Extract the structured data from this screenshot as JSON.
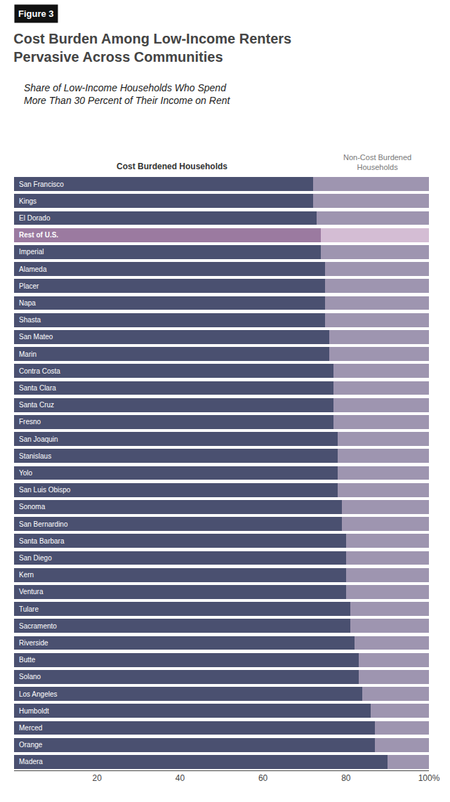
{
  "chart_data": {
    "type": "bar",
    "orientation": "horizontal",
    "stacked": true,
    "title": "Cost Burden Among Low-Income Renters\nPervasive Across Communities",
    "subtitle": "Share of Low-Income Households Who Spend\nMore Than 30 Percent of Their Income on Rent",
    "annotations": [
      "Figure 3"
    ],
    "categories": [
      "San Francisco",
      "Kings",
      "El Dorado",
      "Rest of U.S.",
      "Imperial",
      "Alameda",
      "Placer",
      "Napa",
      "Shasta",
      "San Mateo",
      "Marin",
      "Contra Costa",
      "Santa Clara",
      "Santa Cruz",
      "Fresno",
      "San Joaquin",
      "Stanislaus",
      "Yolo",
      "San Luis Obispo",
      "Sonoma",
      "San Bernardino",
      "Santa Barbara",
      "San Diego",
      "Kern",
      "Ventura",
      "Tulare",
      "Sacramento",
      "Riverside",
      "Butte",
      "Solano",
      "Los Angeles",
      "Humboldt",
      "Merced",
      "Orange",
      "Madera"
    ],
    "series": [
      {
        "name": "Cost Burdened Households",
        "colors": [
          "#4A5070",
          "#4A5070",
          "#4A5070",
          "#9B7AA0",
          "#4A5070",
          "#4A5070",
          "#4A5070",
          "#4A5070",
          "#4A5070",
          "#4A5070",
          "#4A5070",
          "#4A5070",
          "#4A5070",
          "#4A5070",
          "#4A5070",
          "#4A5070",
          "#4A5070",
          "#4A5070",
          "#4A5070",
          "#4A5070",
          "#4A5070",
          "#4A5070",
          "#4A5070",
          "#4A5070",
          "#4A5070",
          "#4A5070",
          "#4A5070",
          "#4A5070",
          "#4A5070",
          "#4A5070",
          "#4A5070",
          "#4A5070",
          "#4A5070",
          "#4A5070",
          "#4A5070"
        ],
        "values": [
          72,
          72,
          73,
          74,
          74,
          75,
          75,
          75,
          75,
          76,
          76,
          77,
          77,
          77,
          77,
          78,
          78,
          78,
          78,
          79,
          79,
          80,
          80,
          80,
          80,
          81,
          81,
          82,
          83,
          83,
          84,
          86,
          87,
          87,
          90
        ]
      },
      {
        "name": "Non-Cost Burdened\nHouseholds",
        "colors": [
          "#9E95B0",
          "#9E95B0",
          "#9E95B0",
          "#D4BDD4",
          "#9E95B0",
          "#9E95B0",
          "#9E95B0",
          "#9E95B0",
          "#9E95B0",
          "#9E95B0",
          "#9E95B0",
          "#9E95B0",
          "#9E95B0",
          "#9E95B0",
          "#9E95B0",
          "#9E95B0",
          "#9E95B0",
          "#9E95B0",
          "#9E95B0",
          "#9E95B0",
          "#9E95B0",
          "#9E95B0",
          "#9E95B0",
          "#9E95B0",
          "#9E95B0",
          "#9E95B0",
          "#9E95B0",
          "#9E95B0",
          "#9E95B0",
          "#9E95B0",
          "#9E95B0",
          "#9E95B0",
          "#9E95B0",
          "#9E95B0",
          "#9E95B0"
        ],
        "values": [
          28,
          28,
          27,
          26,
          26,
          25,
          25,
          25,
          25,
          24,
          24,
          23,
          23,
          23,
          23,
          22,
          22,
          22,
          22,
          21,
          21,
          20,
          20,
          20,
          20,
          19,
          19,
          18,
          17,
          17,
          16,
          14,
          13,
          13,
          10
        ]
      }
    ],
    "xlim": [
      0,
      100
    ],
    "xticks": [
      20,
      40,
      60,
      80,
      {
        "value": 100,
        "label": "100%"
      }
    ],
    "grid": false,
    "tick_labels": "x"
  }
}
